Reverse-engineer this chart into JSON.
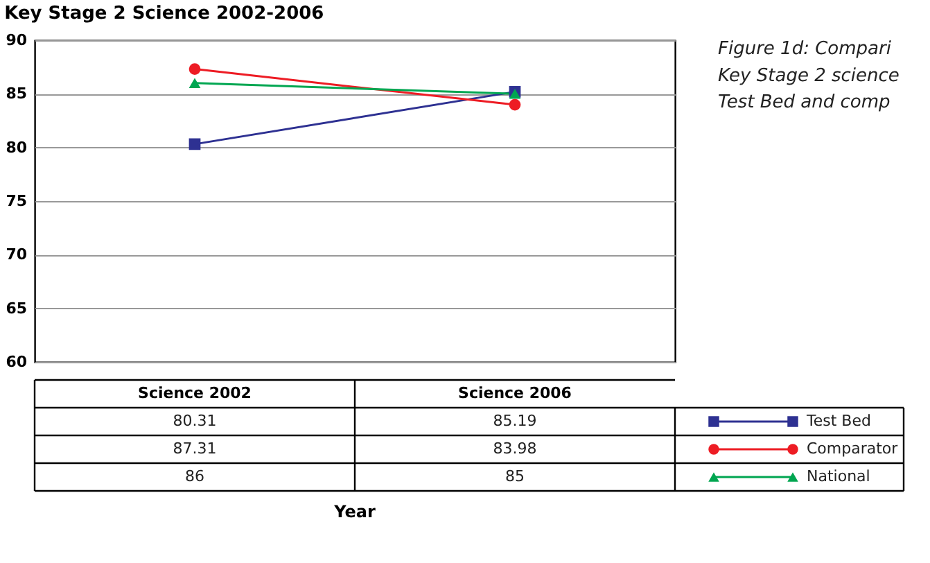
{
  "chart_data": {
    "type": "line",
    "title": "Key Stage 2 Science 2002-2006",
    "categories": [
      "Science 2002",
      "Science 2006"
    ],
    "series": [
      {
        "name": "Test Bed",
        "color": "#2e3192",
        "marker": "square",
        "values": [
          80.31,
          85.19
        ]
      },
      {
        "name": "Comparator",
        "color": "#ed1c24",
        "marker": "circle",
        "values": [
          87.31,
          83.98
        ]
      },
      {
        "name": "National",
        "color": "#00a651",
        "marker": "triangle",
        "values": [
          86,
          85
        ]
      }
    ],
    "ylim": [
      60,
      90
    ],
    "yticks": [
      60,
      65,
      70,
      75,
      80,
      85,
      90
    ],
    "grid": "y",
    "legend": "bottom right",
    "tick_labels": "y",
    "data_labels": true,
    "line_style": "solid",
    "annotations": [
      "Figure 1d: Compari",
      "Key Stage 2 science",
      "Test Bed and comp",
      "Year"
    ]
  }
}
